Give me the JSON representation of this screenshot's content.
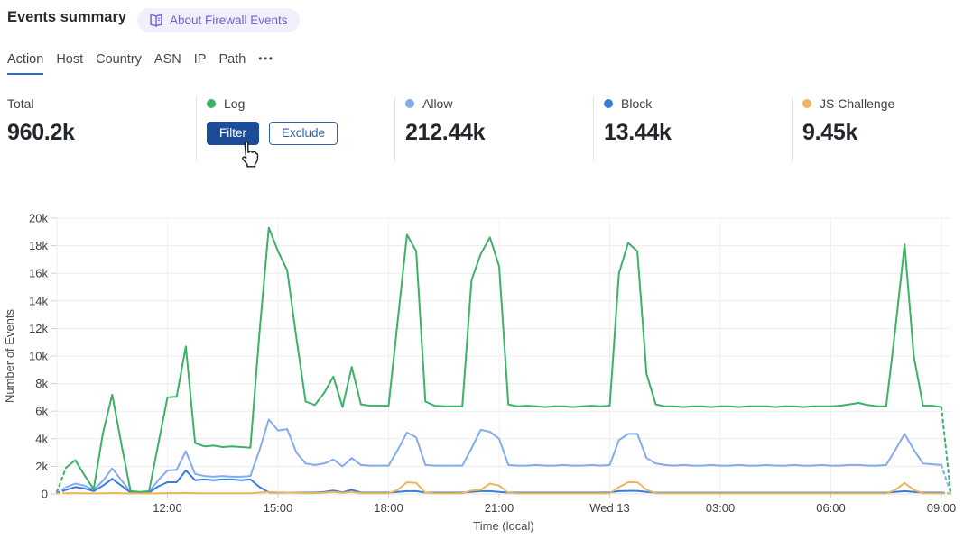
{
  "header": {
    "title": "Events summary",
    "about_label": "About Firewall Events"
  },
  "tabs": [
    {
      "label": "Action",
      "active": true
    },
    {
      "label": "Host",
      "active": false
    },
    {
      "label": "Country",
      "active": false
    },
    {
      "label": "ASN",
      "active": false
    },
    {
      "label": "IP",
      "active": false
    },
    {
      "label": "Path",
      "active": false
    }
  ],
  "tabs_more_label": "•••",
  "stats": {
    "total": {
      "label": "Total",
      "value": "960.2k"
    },
    "cards": [
      {
        "label": "Log",
        "color": "#3cb168",
        "filter_label": "Filter",
        "exclude_label": "Exclude"
      },
      {
        "label": "Allow",
        "color": "#84abee",
        "value": "212.44k"
      },
      {
        "label": "Block",
        "color": "#3a7cdc",
        "value": "13.44k"
      },
      {
        "label": "JS Challenge",
        "color": "#eeb55e",
        "value": "9.45k"
      }
    ]
  },
  "chart_data": {
    "type": "line",
    "title": "",
    "xlabel": "Time (local)",
    "ylabel": "Number of Events",
    "ylim": [
      0,
      20000
    ],
    "grid": true,
    "legend_position": "none",
    "time_start": "09:00",
    "interval_minutes": 15,
    "dashed_first_segment": true,
    "dashed_last_segment": true,
    "y_ticks": [
      "0",
      "2k",
      "4k",
      "6k",
      "8k",
      "10k",
      "12k",
      "14k",
      "16k",
      "18k",
      "20k"
    ],
    "x_ticks": [
      {
        "i": 12,
        "label": "12:00"
      },
      {
        "i": 24,
        "label": "15:00"
      },
      {
        "i": 36,
        "label": "18:00"
      },
      {
        "i": 48,
        "label": "21:00"
      },
      {
        "i": 60,
        "label": "Wed 13"
      },
      {
        "i": 72,
        "label": "03:00"
      },
      {
        "i": 84,
        "label": "06:00"
      },
      {
        "i": 96,
        "label": "09:00"
      }
    ],
    "series": [
      {
        "name": "Log",
        "color": "#3cb168",
        "values": [
          150,
          1900,
          2450,
          1350,
          350,
          4400,
          7200,
          3600,
          200,
          150,
          200,
          3600,
          7000,
          7050,
          10700,
          3700,
          3450,
          3500,
          3400,
          3450,
          3400,
          3350,
          11800,
          19300,
          17600,
          16200,
          11300,
          6700,
          6450,
          7300,
          8500,
          6300,
          9200,
          6500,
          6400,
          6400,
          6400,
          12600,
          18800,
          17600,
          6700,
          6400,
          6350,
          6350,
          6350,
          15500,
          17400,
          18600,
          16500,
          6500,
          6350,
          6400,
          6350,
          6300,
          6350,
          6350,
          6300,
          6350,
          6400,
          6350,
          6400,
          16000,
          18200,
          17600,
          8700,
          6500,
          6350,
          6350,
          6300,
          6350,
          6350,
          6300,
          6350,
          6350,
          6300,
          6350,
          6350,
          6350,
          6300,
          6350,
          6350,
          6300,
          6350,
          6350,
          6350,
          6400,
          6500,
          6600,
          6450,
          6350,
          6350,
          12000,
          18100,
          10000,
          6400,
          6400,
          6300,
          100
        ]
      },
      {
        "name": "Allow",
        "color": "#84abee",
        "values": [
          50,
          500,
          750,
          600,
          300,
          950,
          1850,
          1000,
          150,
          100,
          150,
          1000,
          1700,
          1750,
          3100,
          1450,
          1300,
          1250,
          1300,
          1250,
          1250,
          1300,
          3200,
          5400,
          4600,
          4700,
          3000,
          2200,
          2100,
          2200,
          2500,
          2000,
          2600,
          2100,
          2050,
          2050,
          2050,
          3200,
          4450,
          4100,
          2100,
          2050,
          2050,
          2050,
          2050,
          3300,
          4650,
          4500,
          4000,
          2100,
          2050,
          2050,
          2100,
          2050,
          2050,
          2100,
          2050,
          2050,
          2100,
          2050,
          2100,
          3900,
          4350,
          4350,
          2600,
          2200,
          2100,
          2050,
          2100,
          2050,
          2050,
          2100,
          2050,
          2050,
          2100,
          2050,
          2050,
          2100,
          2050,
          2050,
          2100,
          2050,
          2050,
          2100,
          2050,
          2050,
          2100,
          2100,
          2050,
          2050,
          2100,
          3200,
          4350,
          3200,
          2200,
          2150,
          2100,
          50
        ]
      },
      {
        "name": "Block",
        "color": "#3a7cdc",
        "values": [
          50,
          300,
          500,
          400,
          200,
          600,
          1100,
          600,
          100,
          80,
          100,
          550,
          850,
          850,
          1700,
          1000,
          1050,
          1000,
          1050,
          1050,
          1000,
          1050,
          500,
          120,
          100,
          100,
          100,
          100,
          100,
          150,
          250,
          120,
          300,
          100,
          100,
          100,
          100,
          150,
          200,
          200,
          100,
          100,
          100,
          100,
          100,
          150,
          200,
          200,
          150,
          100,
          100,
          100,
          100,
          100,
          100,
          100,
          100,
          100,
          100,
          100,
          120,
          200,
          220,
          220,
          150,
          100,
          90,
          90,
          90,
          90,
          90,
          90,
          90,
          90,
          90,
          90,
          90,
          90,
          90,
          90,
          90,
          90,
          90,
          90,
          90,
          90,
          90,
          90,
          90,
          90,
          90,
          150,
          200,
          150,
          100,
          100,
          100,
          30
        ]
      },
      {
        "name": "JS Challenge",
        "color": "#eeb55e",
        "values": [
          30,
          50,
          60,
          50,
          40,
          50,
          70,
          50,
          40,
          40,
          40,
          50,
          60,
          60,
          80,
          60,
          50,
          50,
          50,
          50,
          50,
          50,
          100,
          150,
          120,
          100,
          80,
          60,
          60,
          100,
          150,
          80,
          150,
          60,
          50,
          50,
          50,
          300,
          850,
          800,
          100,
          50,
          40,
          40,
          50,
          250,
          300,
          750,
          600,
          80,
          40,
          40,
          40,
          40,
          40,
          40,
          40,
          40,
          40,
          40,
          50,
          500,
          850,
          850,
          300,
          60,
          40,
          40,
          40,
          40,
          40,
          40,
          40,
          40,
          40,
          40,
          40,
          40,
          40,
          40,
          40,
          40,
          40,
          40,
          40,
          40,
          40,
          40,
          40,
          40,
          40,
          300,
          800,
          300,
          50,
          40,
          40,
          20
        ]
      }
    ]
  }
}
